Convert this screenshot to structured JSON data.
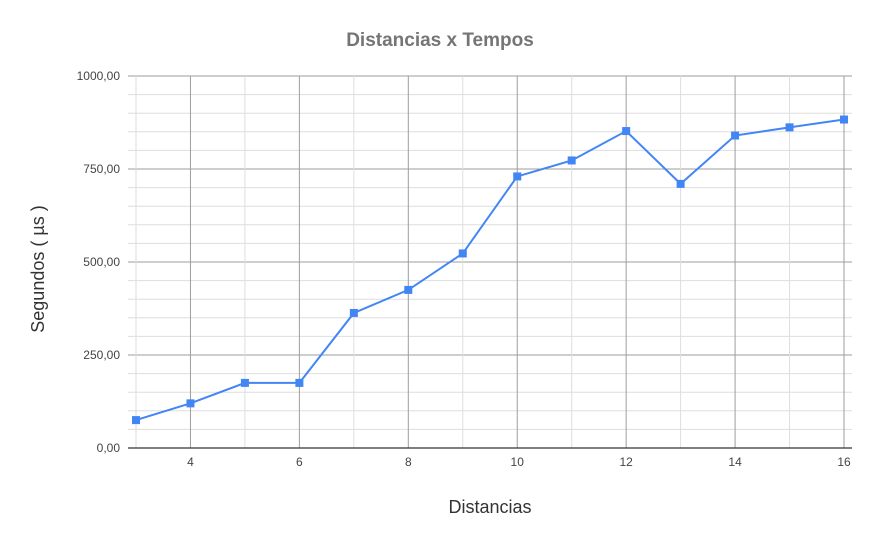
{
  "chart_data": {
    "type": "line",
    "title": "Distancias x Tempos",
    "xlabel": "Distancias",
    "ylabel": "Segundos ( µs )",
    "xlim": [
      3,
      16
    ],
    "ylim": [
      0,
      1000
    ],
    "x_ticks": [
      4,
      6,
      8,
      10,
      12,
      14,
      16
    ],
    "y_ticks": [
      0,
      250,
      500,
      750,
      1000
    ],
    "y_tick_labels": [
      "0,00",
      "250,00",
      "500,00",
      "750,00",
      "1000,00"
    ],
    "grid": true,
    "legend": "none",
    "x": [
      3,
      4,
      5,
      6,
      7,
      8,
      9,
      10,
      11,
      12,
      13,
      14,
      15,
      16
    ],
    "series": [
      {
        "values": [
          75,
          120,
          175,
          175,
          363,
          425,
          523,
          730,
          773,
          852,
          710,
          840,
          862,
          883
        ],
        "color": "#4285f4",
        "marker": "square"
      }
    ]
  }
}
